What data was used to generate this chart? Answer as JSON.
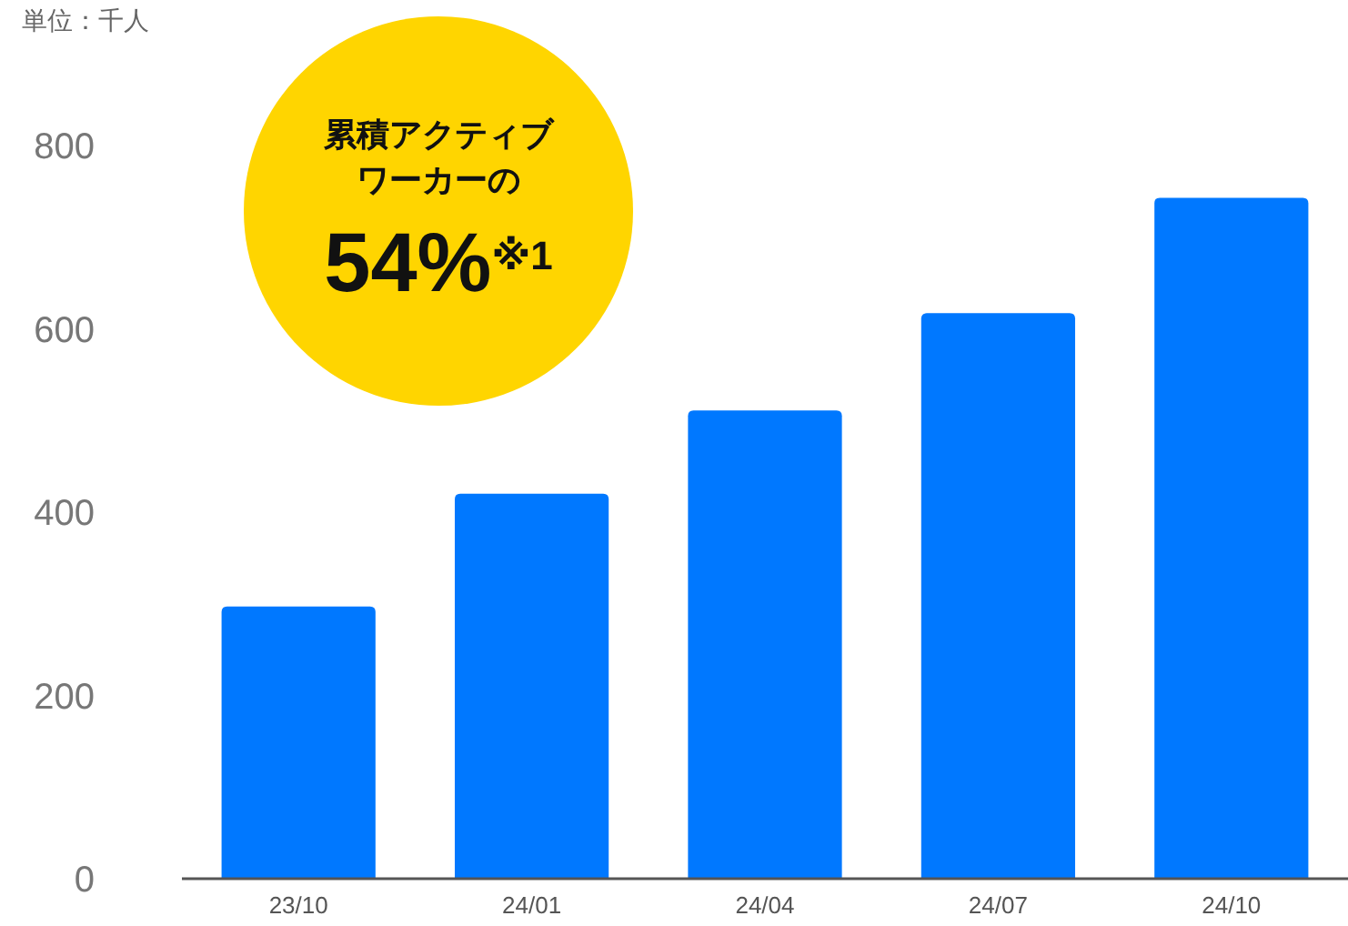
{
  "chart_data": {
    "type": "bar",
    "ylabel": "単位：千人",
    "categories": [
      "23/10",
      "24/01",
      "24/04",
      "24/07",
      "24/10"
    ],
    "values": [
      297,
      420,
      511,
      617,
      743
    ],
    "color": "#0078ff",
    "ylim": [
      0,
      800
    ],
    "yticks": [
      0,
      200,
      400,
      600,
      800
    ],
    "grid": false,
    "annotations": [
      "累積アクティブ",
      "ワーカーの",
      "54%$^{※1}$"
    ]
  }
}
